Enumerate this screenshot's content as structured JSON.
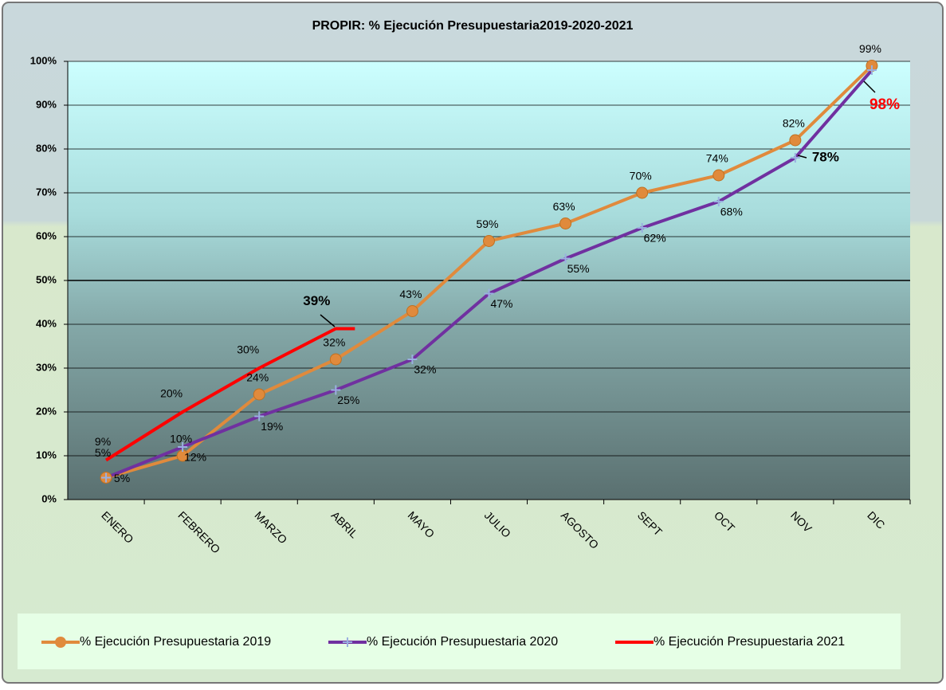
{
  "chart_data": {
    "type": "line",
    "title": "PROPIR: % Ejecución Presupuestaria2019-2020-2021",
    "categories": [
      "ENERO",
      "FEBRERO",
      "MARZO",
      "ABRIL",
      "MAYO",
      "JULIO",
      "AGOSTO",
      "SEPT",
      "OCT",
      "NOV",
      "DIC"
    ],
    "series": [
      {
        "name": "% Ejecución Presupuestaria 2019",
        "color": "#e08a3c",
        "marker": "circle",
        "values": [
          5,
          10,
          24,
          32,
          43,
          59,
          63,
          70,
          74,
          82,
          99
        ],
        "value_labels": [
          "5%",
          "10%",
          "24%",
          "32%",
          "43%",
          "59%",
          "63%",
          "70%",
          "74%",
          "82%",
          "99%"
        ]
      },
      {
        "name": "% Ejecución Presupuestaria 2020",
        "color": "#7030a0",
        "marker": "plus",
        "values": [
          5,
          12,
          19,
          25,
          32,
          47,
          55,
          62,
          68,
          78,
          98
        ],
        "value_labels": [
          "5%",
          "12%",
          "19%",
          "25%",
          "32%",
          "47%",
          "55%",
          "62%",
          "68%",
          "78%",
          "98%"
        ]
      },
      {
        "name": "% Ejecución Presupuestaria 2021",
        "color": "#ff0000",
        "marker": "none",
        "values": [
          9,
          20,
          30,
          39,
          null,
          null,
          null,
          null,
          null,
          null,
          null
        ],
        "value_labels": [
          "9%",
          "20%",
          "30%",
          "39%",
          null,
          null,
          null,
          null,
          null,
          null,
          null
        ]
      }
    ],
    "ylim": [
      0,
      100
    ],
    "yticks": [
      {
        "value": 0,
        "label": "0%"
      },
      {
        "value": 10,
        "label": "10%"
      },
      {
        "value": 20,
        "label": "20%"
      },
      {
        "value": 30,
        "label": "30%"
      },
      {
        "value": 40,
        "label": "40%"
      },
      {
        "value": 50,
        "label": "50%"
      },
      {
        "value": 60,
        "label": "60%"
      },
      {
        "value": 70,
        "label": "70%"
      },
      {
        "value": 80,
        "label": "80%"
      },
      {
        "value": 90,
        "label": "90%"
      },
      {
        "value": 100,
        "label": "100%"
      }
    ],
    "grid": true,
    "legend": "bottom"
  }
}
